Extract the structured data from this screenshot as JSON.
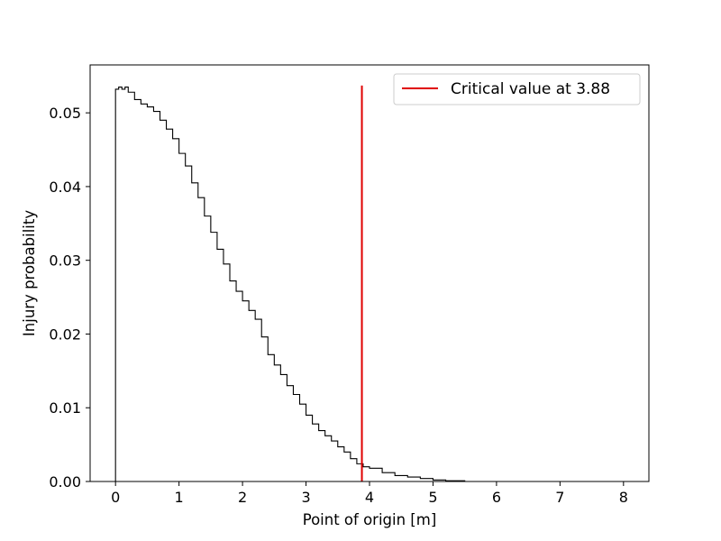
{
  "chart_data": {
    "type": "line",
    "xlabel": "Point of origin [m]",
    "ylabel": "Injury probability",
    "xlim": [
      -0.4,
      8.4
    ],
    "ylim": [
      0,
      0.0565
    ],
    "xticks": [
      0,
      1,
      2,
      3,
      4,
      5,
      6,
      7,
      8
    ],
    "xtick_labels": [
      "0",
      "1",
      "2",
      "3",
      "4",
      "5",
      "6",
      "7",
      "8"
    ],
    "yticks": [
      0,
      0.01,
      0.02,
      0.03,
      0.04,
      0.05
    ],
    "ytick_labels": [
      "0.00",
      "0.01",
      "0.02",
      "0.03",
      "0.04",
      "0.05"
    ],
    "grid": false,
    "legend_position": "top-right",
    "series": [
      {
        "type": "step",
        "color": "#000000",
        "x": [
          0.0,
          0.0,
          0.05,
          0.1,
          0.15,
          0.2,
          0.3,
          0.4,
          0.5,
          0.6,
          0.7,
          0.8,
          0.9,
          1.0,
          1.1,
          1.2,
          1.3,
          1.4,
          1.5,
          1.6,
          1.7,
          1.8,
          1.9,
          2.0,
          2.1,
          2.2,
          2.3,
          2.4,
          2.5,
          2.6,
          2.7,
          2.8,
          2.9,
          3.0,
          3.1,
          3.2,
          3.3,
          3.4,
          3.5,
          3.6,
          3.7,
          3.8,
          3.9,
          4.0,
          4.2,
          4.4,
          4.6,
          4.8,
          5.0,
          5.2,
          5.5,
          6.0,
          7.0,
          8.0
        ],
        "y": [
          0.0,
          0.0532,
          0.0535,
          0.0532,
          0.0535,
          0.0528,
          0.0518,
          0.0512,
          0.0508,
          0.0502,
          0.049,
          0.0478,
          0.0465,
          0.0445,
          0.0428,
          0.0405,
          0.0385,
          0.036,
          0.0338,
          0.0315,
          0.0295,
          0.0272,
          0.0258,
          0.0245,
          0.0232,
          0.022,
          0.0196,
          0.0172,
          0.0158,
          0.0145,
          0.013,
          0.0118,
          0.0105,
          0.009,
          0.0078,
          0.0069,
          0.0062,
          0.0055,
          0.0047,
          0.004,
          0.0031,
          0.0024,
          0.002,
          0.0018,
          0.0012,
          0.0008,
          0.0006,
          0.0004,
          0.0002,
          0.0001,
          0.0,
          0.0,
          0.0,
          0.0
        ]
      }
    ],
    "critical_line": {
      "label": "Critical value at 3.88",
      "x": 3.88,
      "y_top": 0.0537,
      "color": "#e00000"
    }
  }
}
